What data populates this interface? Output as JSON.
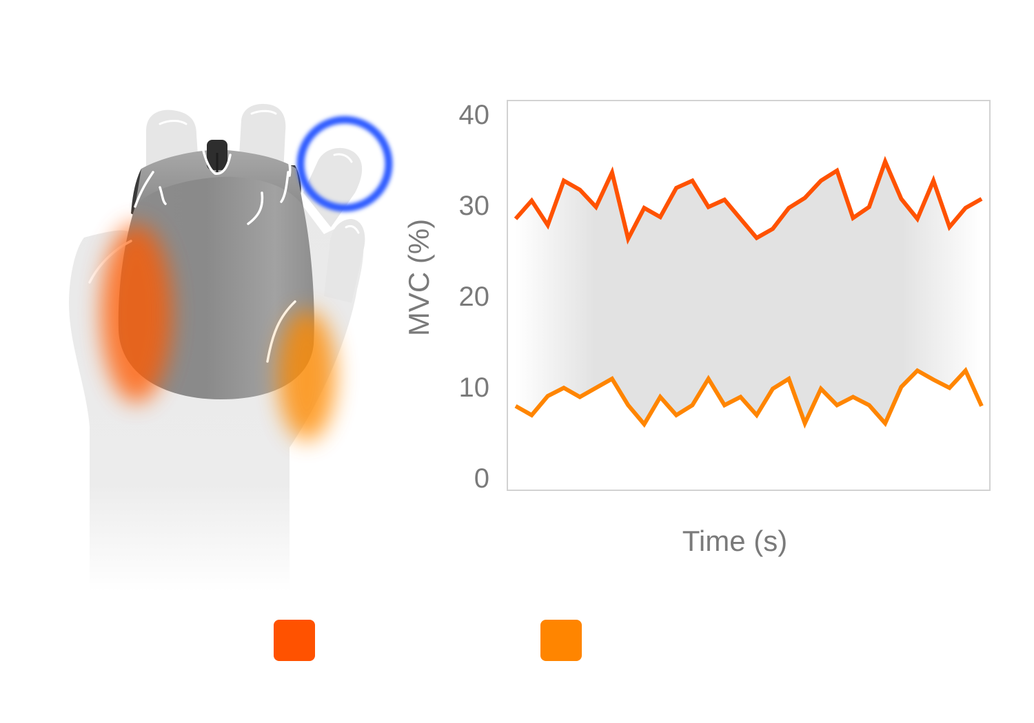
{
  "illustration": {
    "subject": "hand-on-mouse",
    "highlight_color": "#2f5bff",
    "muscle_colors": [
      "#ff5a00",
      "#ff8a00"
    ]
  },
  "legend": [
    {
      "color": "#ff5200"
    },
    {
      "color": "#ff8500"
    }
  ],
  "chart_data": {
    "type": "line",
    "title": "",
    "xlabel": "Time (s)",
    "ylabel": "MVC (%)",
    "ylim": [
      0,
      40
    ],
    "yticks": [
      "0",
      "10",
      "20",
      "30",
      "40"
    ],
    "grid": false,
    "band_color": "#e2e2e2",
    "series": [
      {
        "name": "",
        "color": "#ff5200",
        "values": [
          28.5,
          30.5,
          27.8,
          32.7,
          31.7,
          29.8,
          33.6,
          26.3,
          29.7,
          28.7,
          31.9,
          32.7,
          29.8,
          30.6,
          28.5,
          26.4,
          27.4,
          29.7,
          30.8,
          32.7,
          33.8,
          28.6,
          29.8,
          34.8,
          30.7,
          28.5,
          32.7,
          27.6,
          29.7,
          30.7
        ]
      },
      {
        "name": "",
        "color": "#ff8500",
        "values": [
          7.9,
          6.9,
          9.0,
          9.9,
          8.9,
          9.9,
          10.9,
          8.0,
          5.9,
          8.9,
          6.9,
          8.0,
          10.9,
          8.0,
          8.9,
          6.9,
          9.8,
          10.9,
          6.0,
          9.8,
          8.0,
          8.9,
          8.0,
          6.0,
          10.0,
          11.8,
          10.8,
          9.9,
          11.8,
          7.9
        ]
      }
    ]
  }
}
